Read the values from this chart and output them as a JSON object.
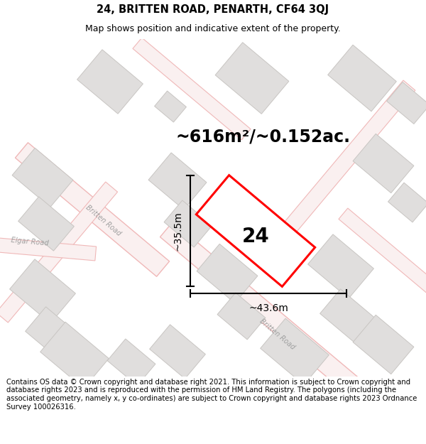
{
  "title": "24, BRITTEN ROAD, PENARTH, CF64 3QJ",
  "subtitle": "Map shows position and indicative extent of the property.",
  "area_text": "~616m²/~0.152ac.",
  "number_label": "24",
  "dim_width": "~43.6m",
  "dim_height": "~35.5m",
  "footer": "Contains OS data © Crown copyright and database right 2021. This information is subject to Crown copyright and database rights 2023 and is reproduced with the permission of HM Land Registry. The polygons (including the associated geometry, namely x, y co-ordinates) are subject to Crown copyright and database rights 2023 Ordnance Survey 100026316.",
  "map_bg": "#f7f6f4",
  "road_stroke": "#f0b8b8",
  "road_fill": "#faf0f0",
  "building_face": "#e0dedd",
  "building_edge": "#c8c5c2",
  "plot_edge": "#ff0000",
  "plot_fill": "#ffffff",
  "title_fontsize": 10.5,
  "subtitle_fontsize": 9,
  "area_fontsize": 17,
  "number_fontsize": 20,
  "dim_fontsize": 10,
  "road_label_fontsize": 7,
  "footer_fontsize": 7.2
}
